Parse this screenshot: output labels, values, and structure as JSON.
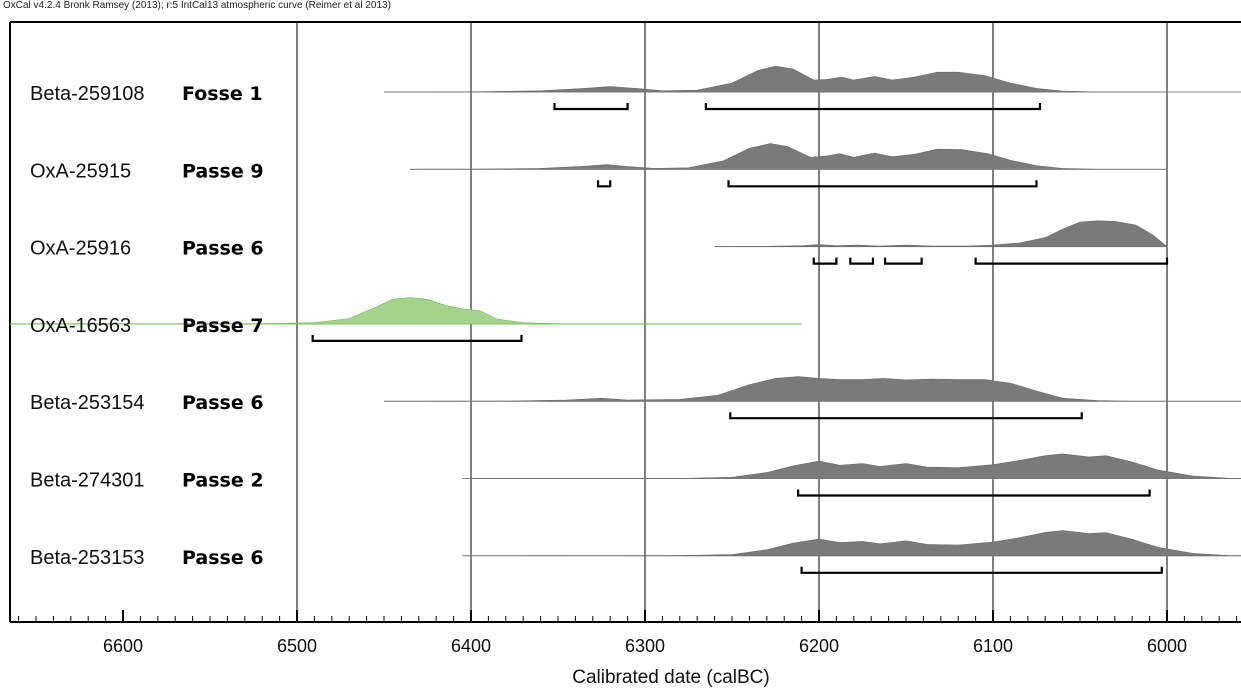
{
  "header": "OxCal v4.2.4 Bronk Ramsey (2013); r:5 IntCal13 atmospheric curve (Reimer et al 2013)",
  "colors": {
    "distribution": "#7a7a7a",
    "highlight": "#a5d38c",
    "highlight_line": "#6cbf4e",
    "axis": "#000000"
  },
  "chart_data": {
    "type": "area",
    "xlabel": "Calibrated date (calBC)",
    "xlim": [
      6665,
      5955
    ],
    "xaxis_reversed": true,
    "ticks": [
      6600,
      6500,
      6400,
      6300,
      6200,
      6100,
      6000
    ],
    "grid_x": [
      6500,
      6400,
      6300,
      6200,
      6100,
      6000
    ],
    "samples": [
      {
        "lab_code": "Beta-259108",
        "context": "Fosse 1",
        "highlight": false,
        "range": [
          6450,
          5955
        ],
        "density": [
          [
            6450,
            0
          ],
          [
            6400,
            0.005
          ],
          [
            6360,
            0.04
          ],
          [
            6335,
            0.12
          ],
          [
            6320,
            0.18
          ],
          [
            6305,
            0.12
          ],
          [
            6290,
            0.04
          ],
          [
            6270,
            0.06
          ],
          [
            6250,
            0.3
          ],
          [
            6235,
            0.72
          ],
          [
            6225,
            0.86
          ],
          [
            6215,
            0.77
          ],
          [
            6203,
            0.4
          ],
          [
            6195,
            0.42
          ],
          [
            6187,
            0.5
          ],
          [
            6180,
            0.4
          ],
          [
            6168,
            0.52
          ],
          [
            6158,
            0.4
          ],
          [
            6145,
            0.5
          ],
          [
            6132,
            0.66
          ],
          [
            6120,
            0.66
          ],
          [
            6105,
            0.55
          ],
          [
            6090,
            0.3
          ],
          [
            6075,
            0.12
          ],
          [
            6060,
            0.03
          ],
          [
            6040,
            0
          ],
          [
            6000,
            0
          ]
        ],
        "hpd": [
          [
            6352,
            6310
          ],
          [
            6265,
            6073
          ]
        ]
      },
      {
        "lab_code": "OxA-25915",
        "context": "Passe 9",
        "highlight": false,
        "range": [
          6435,
          6000
        ],
        "density": [
          [
            6435,
            0
          ],
          [
            6400,
            0.005
          ],
          [
            6360,
            0.03
          ],
          [
            6335,
            0.1
          ],
          [
            6322,
            0.16
          ],
          [
            6310,
            0.09
          ],
          [
            6295,
            0.03
          ],
          [
            6275,
            0.05
          ],
          [
            6255,
            0.28
          ],
          [
            6240,
            0.7
          ],
          [
            6228,
            0.86
          ],
          [
            6218,
            0.76
          ],
          [
            6205,
            0.4
          ],
          [
            6196,
            0.44
          ],
          [
            6188,
            0.52
          ],
          [
            6180,
            0.4
          ],
          [
            6168,
            0.54
          ],
          [
            6158,
            0.42
          ],
          [
            6145,
            0.5
          ],
          [
            6132,
            0.67
          ],
          [
            6118,
            0.66
          ],
          [
            6103,
            0.52
          ],
          [
            6090,
            0.3
          ],
          [
            6075,
            0.12
          ],
          [
            6060,
            0.03
          ],
          [
            6040,
            0
          ],
          [
            6000,
            0
          ]
        ],
        "hpd": [
          [
            6327,
            6320
          ],
          [
            6252,
            6075
          ]
        ]
      },
      {
        "lab_code": "OxA-25916",
        "context": "Passe 6",
        "highlight": false,
        "range": [
          6260,
          6000
        ],
        "density": [
          [
            6260,
            0
          ],
          [
            6230,
            0.01
          ],
          [
            6210,
            0.03
          ],
          [
            6200,
            0.07
          ],
          [
            6190,
            0.03
          ],
          [
            6178,
            0.05
          ],
          [
            6165,
            0.02
          ],
          [
            6150,
            0.05
          ],
          [
            6135,
            0.02
          ],
          [
            6115,
            0.02
          ],
          [
            6100,
            0.05
          ],
          [
            6085,
            0.12
          ],
          [
            6070,
            0.3
          ],
          [
            6060,
            0.58
          ],
          [
            6050,
            0.82
          ],
          [
            6040,
            0.86
          ],
          [
            6030,
            0.84
          ],
          [
            6018,
            0.72
          ],
          [
            6008,
            0.38
          ],
          [
            6000,
            0
          ]
        ],
        "hpd": [
          [
            6203,
            6190
          ],
          [
            6182,
            6169
          ],
          [
            6162,
            6141
          ],
          [
            6110,
            6000
          ]
        ]
      },
      {
        "lab_code": "OxA-16563",
        "context": "Passe 7",
        "highlight": true,
        "range": [
          6665,
          6210
        ],
        "density": [
          [
            6665,
            0
          ],
          [
            6520,
            0.005
          ],
          [
            6490,
            0.04
          ],
          [
            6470,
            0.18
          ],
          [
            6455,
            0.55
          ],
          [
            6445,
            0.82
          ],
          [
            6435,
            0.88
          ],
          [
            6425,
            0.82
          ],
          [
            6415,
            0.62
          ],
          [
            6405,
            0.5
          ],
          [
            6395,
            0.44
          ],
          [
            6385,
            0.16
          ],
          [
            6370,
            0.04
          ],
          [
            6350,
            0.005
          ],
          [
            6300,
            0
          ],
          [
            6210,
            0
          ]
        ],
        "hpd": [
          [
            6491,
            6371
          ]
        ]
      },
      {
        "lab_code": "Beta-253154",
        "context": "Passe 6",
        "highlight": false,
        "range": [
          6450,
          5955
        ],
        "density": [
          [
            6450,
            0
          ],
          [
            6380,
            0.005
          ],
          [
            6345,
            0.04
          ],
          [
            6325,
            0.1
          ],
          [
            6310,
            0.04
          ],
          [
            6280,
            0.06
          ],
          [
            6258,
            0.2
          ],
          [
            6240,
            0.55
          ],
          [
            6225,
            0.76
          ],
          [
            6212,
            0.82
          ],
          [
            6200,
            0.76
          ],
          [
            6188,
            0.72
          ],
          [
            6175,
            0.72
          ],
          [
            6163,
            0.76
          ],
          [
            6150,
            0.71
          ],
          [
            6135,
            0.74
          ],
          [
            6120,
            0.72
          ],
          [
            6105,
            0.72
          ],
          [
            6090,
            0.6
          ],
          [
            6075,
            0.34
          ],
          [
            6060,
            0.1
          ],
          [
            6040,
            0.02
          ],
          [
            6020,
            0
          ],
          [
            5955,
            0
          ]
        ],
        "hpd": [
          [
            6251,
            6049
          ]
        ]
      },
      {
        "lab_code": "Beta-274301",
        "context": "Passe 2",
        "highlight": false,
        "range": [
          6405,
          5955
        ],
        "density": [
          [
            6405,
            0
          ],
          [
            6280,
            0.005
          ],
          [
            6250,
            0.04
          ],
          [
            6230,
            0.2
          ],
          [
            6215,
            0.42
          ],
          [
            6200,
            0.58
          ],
          [
            6188,
            0.44
          ],
          [
            6175,
            0.5
          ],
          [
            6165,
            0.4
          ],
          [
            6150,
            0.5
          ],
          [
            6138,
            0.38
          ],
          [
            6120,
            0.36
          ],
          [
            6100,
            0.46
          ],
          [
            6085,
            0.6
          ],
          [
            6070,
            0.76
          ],
          [
            6060,
            0.82
          ],
          [
            6045,
            0.72
          ],
          [
            6035,
            0.76
          ],
          [
            6020,
            0.55
          ],
          [
            6005,
            0.28
          ],
          [
            5985,
            0.08
          ],
          [
            5965,
            0.01
          ],
          [
            5955,
            0
          ]
        ],
        "hpd": [
          [
            6212,
            6010
          ]
        ]
      },
      {
        "lab_code": "Beta-253153",
        "context": "Passe 6",
        "highlight": false,
        "range": [
          6405,
          5955
        ],
        "density": [
          [
            6405,
            0
          ],
          [
            6280,
            0.005
          ],
          [
            6250,
            0.04
          ],
          [
            6230,
            0.2
          ],
          [
            6215,
            0.42
          ],
          [
            6200,
            0.56
          ],
          [
            6188,
            0.44
          ],
          [
            6175,
            0.48
          ],
          [
            6165,
            0.4
          ],
          [
            6150,
            0.5
          ],
          [
            6138,
            0.38
          ],
          [
            6120,
            0.36
          ],
          [
            6100,
            0.46
          ],
          [
            6085,
            0.6
          ],
          [
            6070,
            0.78
          ],
          [
            6060,
            0.84
          ],
          [
            6045,
            0.74
          ],
          [
            6035,
            0.77
          ],
          [
            6020,
            0.55
          ],
          [
            6005,
            0.28
          ],
          [
            5985,
            0.08
          ],
          [
            5965,
            0.01
          ],
          [
            5955,
            0
          ]
        ],
        "hpd": [
          [
            6210,
            6003
          ]
        ]
      }
    ]
  }
}
